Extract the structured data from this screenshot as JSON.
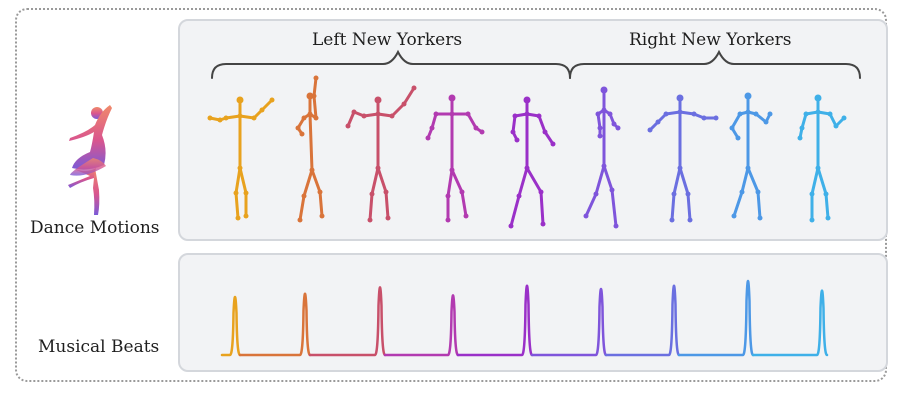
{
  "labels": {
    "dance_motions": "Dance Motions",
    "musical_beats": "Musical Beats"
  },
  "groups": {
    "left": "Left New Yorkers",
    "right": "Right New Yorkers"
  },
  "colors": {
    "gradient": [
      "#e8a21e",
      "#d9743a",
      "#c8506a",
      "#b23ab0",
      "#9a30c8",
      "#7f55db",
      "#6b6fe0",
      "#4d98e6",
      "#3fb0e8"
    ],
    "panel_bg": "#f2f3f5",
    "panel_border": "#d4d7dc"
  },
  "chart_data": {
    "type": "line",
    "description_series": "beat pulses",
    "beats": 9
  }
}
